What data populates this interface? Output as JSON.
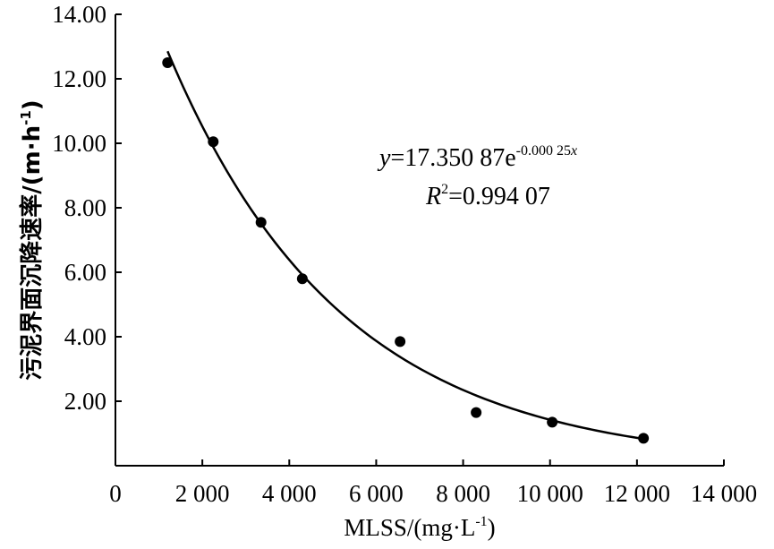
{
  "chart_data": {
    "type": "scatter",
    "xlabel": {
      "main": "MLSS/(mg·L",
      "sup": "-1",
      "close": ")"
    },
    "ylabel": {
      "main": "污泥界面沉降速率/(m·h",
      "sup": "-1",
      "close": ")"
    },
    "xlim": [
      0,
      14000
    ],
    "ylim": [
      0,
      14
    ],
    "x_ticks": [
      {
        "value": 0,
        "label": "0"
      },
      {
        "value": 2000,
        "label": "2 000"
      },
      {
        "value": 4000,
        "label": "4 000"
      },
      {
        "value": 6000,
        "label": "6 000"
      },
      {
        "value": 8000,
        "label": "8 000"
      },
      {
        "value": 10000,
        "label": "10 000"
      },
      {
        "value": 12000,
        "label": "12 000"
      },
      {
        "value": 14000,
        "label": "14 000"
      }
    ],
    "y_ticks": [
      {
        "value": 2,
        "label": "2.00"
      },
      {
        "value": 4,
        "label": "4.00"
      },
      {
        "value": 6,
        "label": "6.00"
      },
      {
        "value": 8,
        "label": "8.00"
      },
      {
        "value": 10,
        "label": "10.00"
      },
      {
        "value": 12,
        "label": "12.00"
      },
      {
        "value": 14,
        "label": "14.00"
      }
    ],
    "points": [
      {
        "x": 1200,
        "y": 12.5
      },
      {
        "x": 2250,
        "y": 10.05
      },
      {
        "x": 3350,
        "y": 7.55
      },
      {
        "x": 4300,
        "y": 5.8
      },
      {
        "x": 6550,
        "y": 3.85
      },
      {
        "x": 8300,
        "y": 1.65
      },
      {
        "x": 10050,
        "y": 1.35
      },
      {
        "x": 12150,
        "y": 0.85
      }
    ],
    "fit": {
      "type": "exponential",
      "a": 17.35087,
      "b": -0.00025,
      "x_range": [
        1200,
        12150
      ]
    },
    "annotation": {
      "equation_var": "y",
      "equation_eq": "=17.350 87e",
      "equation_exp_a": "-0.000 25",
      "equation_exp_var": "x",
      "r2_var": "R",
      "r2_sup": "2",
      "r2_value": "=0.994 07"
    },
    "grid": false,
    "legend": "none"
  }
}
